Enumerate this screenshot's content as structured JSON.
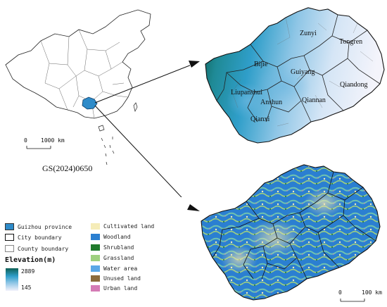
{
  "china_map": {
    "scale_label": "1000 km",
    "scale_zero": "0",
    "approval_number": "GS(2024)0650"
  },
  "elevation_map": {
    "cities": [
      "Zunyi",
      "Tongren",
      "Bijie",
      "Guiyang",
      "Qiandong",
      "Liupanshui",
      "Anshun",
      "Qiannan",
      "Qianxi"
    ]
  },
  "landuse_map": {
    "scale_zero": "0",
    "scale_label": "100 km"
  },
  "legend": {
    "boundaries": [
      {
        "label": "Guizhou province",
        "color": "#2e8bc9"
      },
      {
        "label": "City boundary",
        "color": "#ffffff"
      },
      {
        "label": "County boundary",
        "color": "#ffffff"
      }
    ],
    "elevation_title": "Elevation(m)",
    "elevation_max": "2889",
    "elevation_min": "145",
    "elevation_colors": [
      "#0d5f55",
      "#2f9ec9",
      "#8fc6e6",
      "#f1f1fb"
    ],
    "landuse": [
      {
        "label": "Cultivated land",
        "color": "#f5ecb8"
      },
      {
        "label": "Woodland",
        "color": "#2b7fd1"
      },
      {
        "label": "Shrubland",
        "color": "#1f7a2d"
      },
      {
        "label": "Grassland",
        "color": "#9fd080"
      },
      {
        "label": "Water area",
        "color": "#5aa7e6"
      },
      {
        "label": "Unused land",
        "color": "#8b6b3c"
      },
      {
        "label": "Urban land",
        "color": "#d47bb5"
      }
    ]
  }
}
